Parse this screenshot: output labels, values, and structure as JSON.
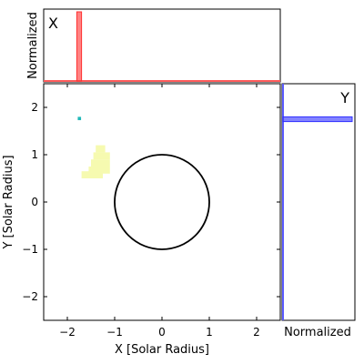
{
  "chart_data": [
    {
      "panel": "main",
      "type": "heatmap",
      "xlabel": "X [Solar Radius]",
      "ylabel": "Y [Solar Radius]",
      "xlim": [
        -2.5,
        2.5
      ],
      "ylim": [
        -2.5,
        2.5
      ],
      "xticks": [
        -2,
        -1,
        0,
        1,
        2
      ],
      "yticks": [
        -2,
        -1,
        0,
        1,
        2
      ],
      "grid": false,
      "annotations": [
        {
          "kind": "circle",
          "center": [
            0,
            0
          ],
          "radius": 1.0,
          "color": "#000000"
        }
      ],
      "regions": [
        {
          "color": "#f6fab0",
          "cells": [
            [
              -1.4,
              1.05,
              0.2,
              0.15
            ],
            [
              -1.45,
              0.9,
              0.35,
              0.15
            ],
            [
              -1.5,
              0.75,
              0.4,
              0.15
            ],
            [
              -1.55,
              0.6,
              0.45,
              0.15
            ],
            [
              -1.7,
              0.5,
              0.45,
              0.15
            ]
          ]
        },
        {
          "color": "#20b8b8",
          "cells": [
            [
              -1.78,
              1.73,
              0.07,
              0.07
            ]
          ]
        }
      ]
    },
    {
      "panel": "top",
      "type": "bar",
      "label": "X",
      "ylabel": "Normalized",
      "xlim": [
        -2.5,
        2.5
      ],
      "peak_x": -1.75,
      "peak_width": 0.1,
      "peak_value": 1.0,
      "color": "#ff5a5a"
    },
    {
      "panel": "right",
      "type": "bar",
      "label": "Y",
      "xlabel": "Normalized",
      "ylim": [
        -2.5,
        2.5
      ],
      "peak_y": 1.75,
      "peak_width": 0.1,
      "peak_value": 1.0,
      "color": "#5a5aff"
    }
  ]
}
